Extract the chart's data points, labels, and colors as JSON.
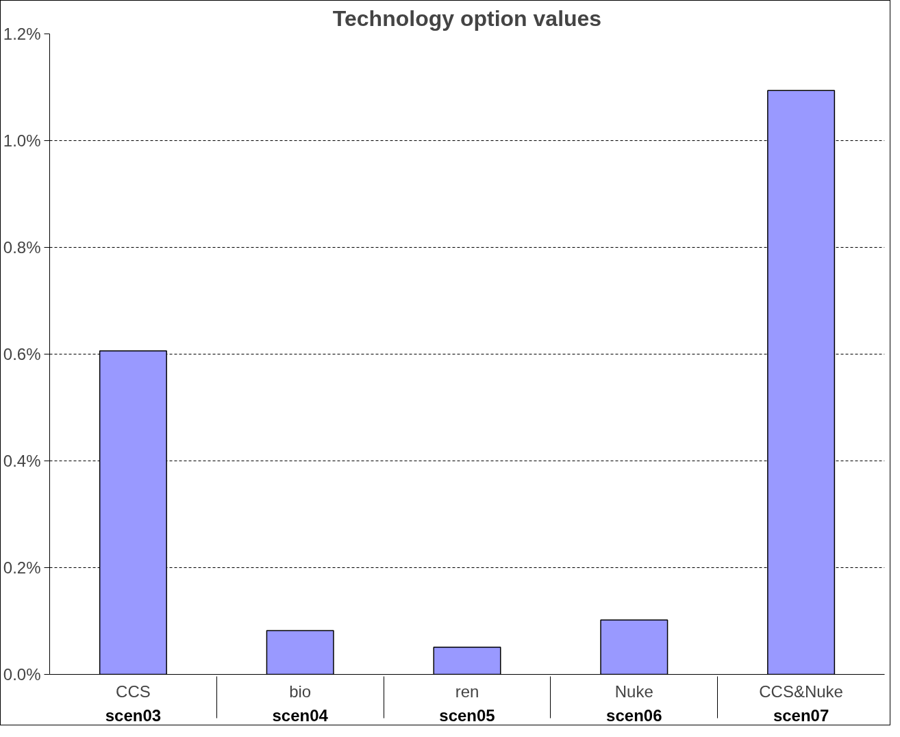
{
  "chart_data": {
    "type": "bar",
    "title": "Technology option values",
    "categories": [
      "CCS\nscen03",
      "bio\nscen04",
      "ren\nscen05",
      "Nuke\nscen06",
      "CCS&Nuke\nscen07"
    ],
    "values": [
      0.606,
      0.082,
      0.051,
      0.102,
      1.094
    ],
    "color": "#9999ff",
    "ylim": [
      0,
      1.2
    ],
    "yticks": [
      {
        "value": 0,
        "label": "0.0%"
      },
      {
        "value": 0.2,
        "label": "0.2%"
      },
      {
        "value": 0.4,
        "label": "0.4%"
      },
      {
        "value": 0.6,
        "label": "0.6%"
      },
      {
        "value": 0.8,
        "label": "0.8%"
      },
      {
        "value": 1.0,
        "label": "1.0%"
      },
      {
        "value": 1.2,
        "label": "1.2%"
      }
    ],
    "grid": "y"
  }
}
